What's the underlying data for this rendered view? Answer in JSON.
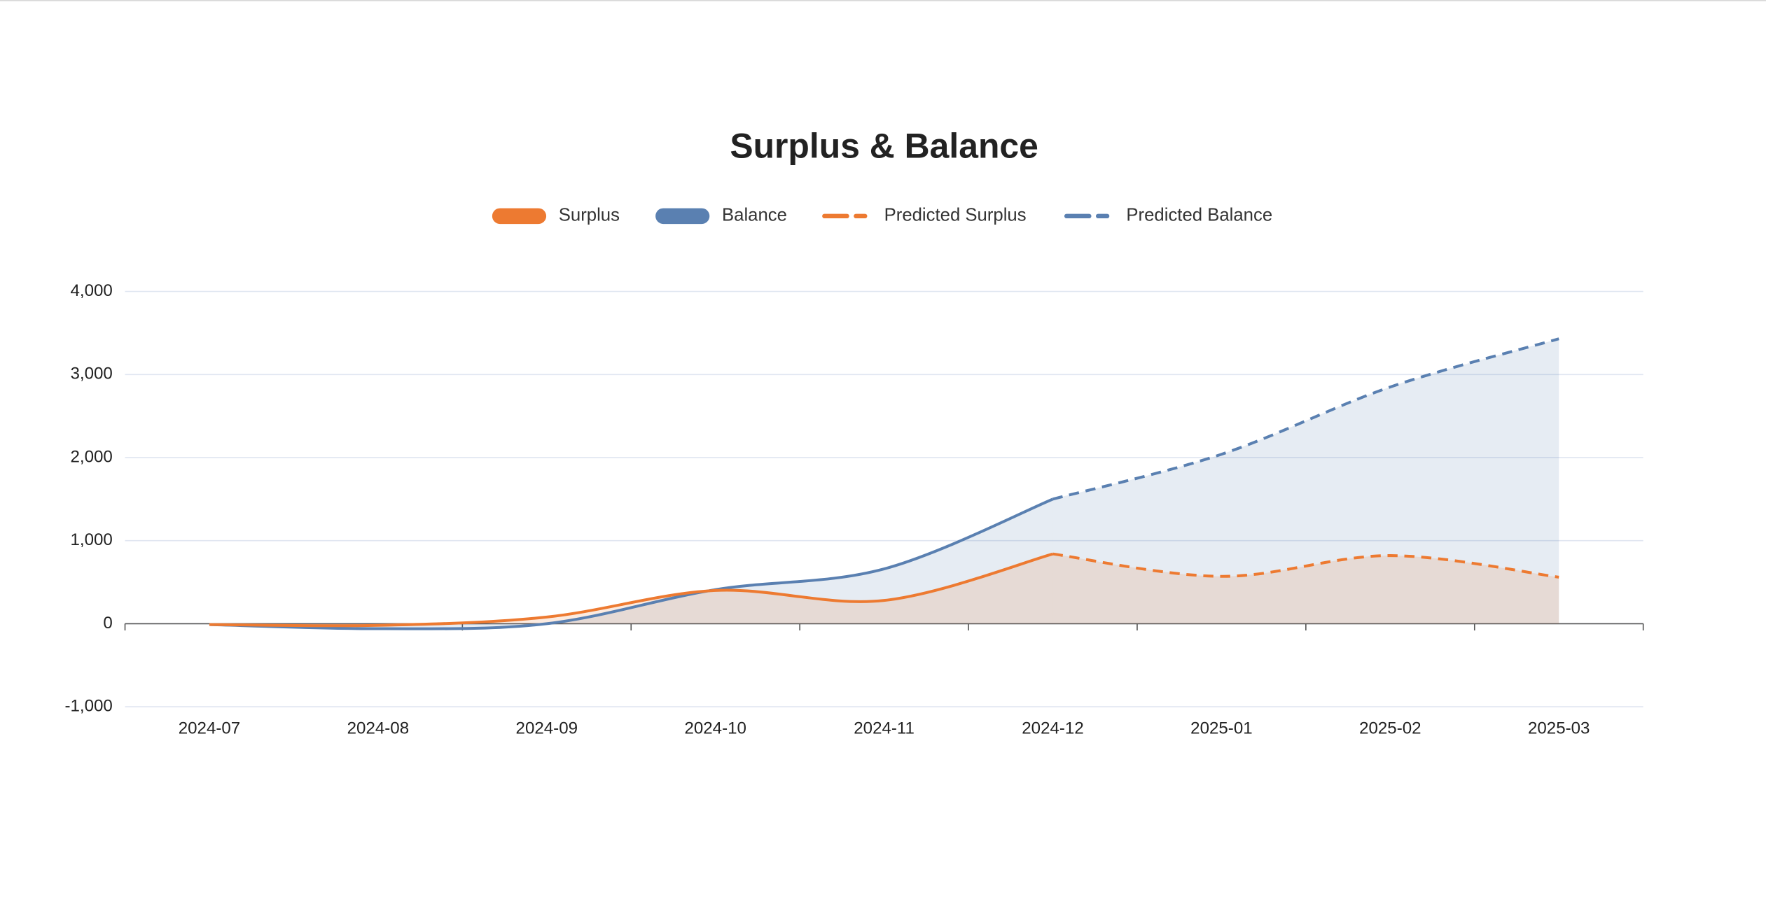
{
  "chart_data": {
    "type": "line",
    "title": "Surplus & Balance",
    "categories": [
      "2024-07",
      "2024-08",
      "2024-09",
      "2024-10",
      "2024-11",
      "2024-12",
      "2025-01",
      "2025-02",
      "2025-03"
    ],
    "series": [
      {
        "name": "Surplus",
        "color": "#ed7a31",
        "line_style": "solid",
        "values": [
          -10,
          -20,
          80,
          400,
          280,
          840,
          null,
          null,
          null
        ]
      },
      {
        "name": "Balance",
        "color": "#5a80b1",
        "line_style": "solid",
        "values": [
          -10,
          -60,
          0,
          410,
          660,
          1500,
          null,
          null,
          null
        ]
      },
      {
        "name": "Predicted Surplus",
        "color": "#ed7a31",
        "line_style": "dashed",
        "values": [
          null,
          null,
          null,
          null,
          null,
          840,
          570,
          820,
          560
        ]
      },
      {
        "name": "Predicted Balance",
        "color": "#5a80b1",
        "line_style": "dashed",
        "values": [
          null,
          null,
          null,
          null,
          null,
          1500,
          2040,
          2850,
          3430
        ]
      }
    ],
    "ylim": [
      -1000,
      4000
    ],
    "yticks": [
      {
        "value": -1000,
        "label": "-1,000"
      },
      0,
      {
        "value": 1000,
        "label": "1,000"
      },
      {
        "value": 2000,
        "label": "2,000"
      },
      {
        "value": 3000,
        "label": "3,000"
      },
      {
        "value": 4000,
        "label": "4,000"
      }
    ],
    "grid": true,
    "area": true,
    "smooth": true,
    "legend": "top"
  }
}
